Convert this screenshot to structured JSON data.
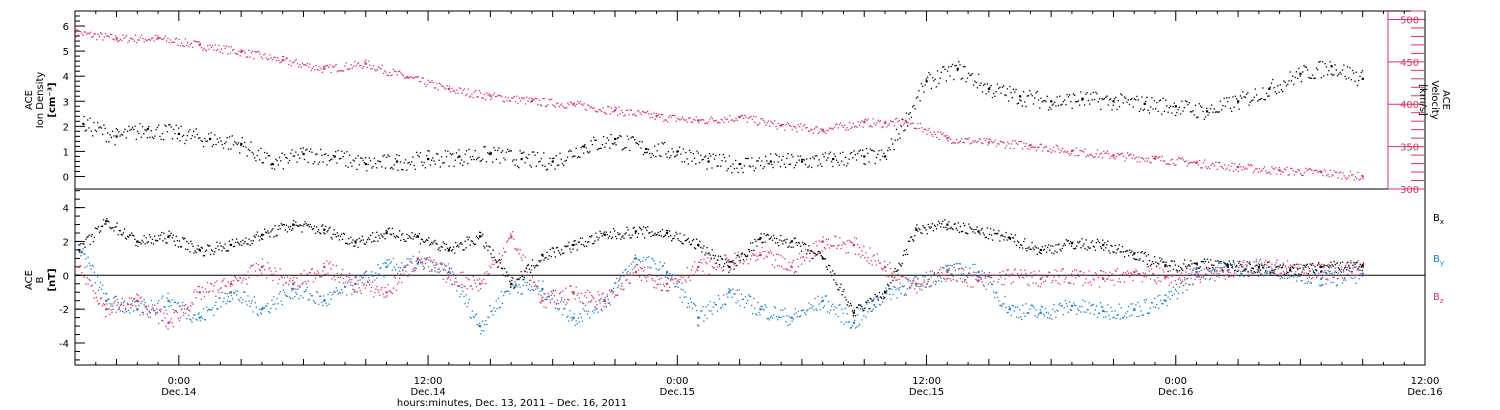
{
  "colors": {
    "density": "#000000",
    "velocity": "#e0355f",
    "bx": "#000000",
    "by": "#1a7fd6",
    "bz": "#e0355f"
  },
  "chart_data": [
    {
      "type": "scatter",
      "panel": "top",
      "ylabel_lines": [
        "ACE",
        "Ion Density",
        "[cm⁻³]"
      ],
      "y2label_lines": [
        "ACE",
        "Velocity",
        "[km/s]"
      ],
      "ylim": [
        -0.5,
        6.6
      ],
      "y2lim": [
        300,
        510
      ],
      "yticks": [
        "0",
        "1",
        "2",
        "3",
        "4",
        "5",
        "6"
      ],
      "y2ticks": [
        "300",
        "350",
        "400",
        "450",
        "500"
      ],
      "x_hours_range": [
        -5,
        60
      ],
      "series": [
        {
          "name": "Ion Density",
          "axis": "left",
          "color": "#000000",
          "x_hours": [
            -4.6,
            -3,
            -1.5,
            0,
            1.5,
            3,
            4.5,
            6,
            7.5,
            9,
            10.5,
            12,
            13.5,
            15,
            16.5,
            18,
            19.5,
            21,
            22.5,
            24,
            25.5,
            27,
            28.5,
            30,
            31.5,
            33,
            34,
            36,
            37.5,
            39,
            40.5,
            42,
            43.5,
            45,
            46.5,
            48,
            49.5,
            51,
            52.5,
            54,
            55.5,
            57
          ],
          "values": [
            2.1,
            1.6,
            1.9,
            1.7,
            1.5,
            1.3,
            0.5,
            0.9,
            0.8,
            0.5,
            0.6,
            0.7,
            0.8,
            0.9,
            0.7,
            0.6,
            1.2,
            1.5,
            1.1,
            1.0,
            0.6,
            0.5,
            0.6,
            0.6,
            0.7,
            0.8,
            0.8,
            3.8,
            4.3,
            3.5,
            3.2,
            3.0,
            3.1,
            3.0,
            2.9,
            2.8,
            2.6,
            3.0,
            3.5,
            4.1,
            4.4,
            3.9
          ]
        },
        {
          "name": "Velocity",
          "axis": "right",
          "color": "#e0355f",
          "x_hours": [
            -5,
            -3,
            -1,
            1,
            3,
            5,
            7,
            9,
            11,
            13,
            15,
            17,
            19,
            21,
            23,
            25,
            27,
            29,
            31,
            33,
            34,
            35,
            37,
            39,
            41,
            43,
            45,
            47,
            49,
            51,
            53,
            55,
            57
          ],
          "values": [
            485,
            478,
            478,
            470,
            462,
            452,
            442,
            448,
            432,
            418,
            410,
            404,
            400,
            393,
            386,
            381,
            385,
            375,
            370,
            379,
            378,
            380,
            360,
            355,
            352,
            345,
            340,
            336,
            331,
            326,
            322,
            320,
            315
          ]
        }
      ]
    },
    {
      "type": "scatter",
      "panel": "bottom",
      "ylabel_lines": [
        "ACE",
        "B",
        "[nT]"
      ],
      "ylim": [
        -5.3,
        5.1
      ],
      "yticks": [
        "-4",
        "-2",
        "0",
        "2",
        "4"
      ],
      "x_hours_range": [
        -5,
        60
      ],
      "xtick_labels": [
        {
          "time": "0:00",
          "date": "Dec.14"
        },
        {
          "time": "12:00",
          "date": "Dec.14"
        },
        {
          "time": "0:00",
          "date": "Dec.15"
        },
        {
          "time": "12:00",
          "date": "Dec.15"
        },
        {
          "time": "0:00",
          "date": "Dec.16"
        },
        {
          "time": "12:00",
          "date": "Dec.16"
        }
      ],
      "xlabel": "hours:minutes, Dec. 13, 2011 – Dec. 16, 2011",
      "legend": [
        {
          "label": "B",
          "sub": "x",
          "color": "#000000"
        },
        {
          "label": "B",
          "sub": "y",
          "color": "#1a7fd6"
        },
        {
          "label": "B",
          "sub": "z",
          "color": "#e0355f"
        }
      ],
      "series": [
        {
          "name": "Bx",
          "color": "#000000",
          "x_hours": [
            -4.8,
            -3.5,
            -2,
            -0.5,
            1,
            2.5,
            4,
            5.5,
            7,
            8.5,
            10,
            11.5,
            13,
            14.5,
            16,
            17.5,
            19,
            20.5,
            22,
            23.5,
            25,
            26.5,
            28,
            29.5,
            31,
            32.5,
            34,
            35.5,
            37,
            38.5,
            40,
            41.5,
            43,
            44.5,
            46,
            47.5,
            49,
            50.5,
            52,
            53.5,
            55,
            57
          ],
          "values": [
            1.5,
            3.2,
            2.0,
            2.3,
            1.5,
            1.8,
            2.4,
            3.0,
            2.7,
            2.0,
            2.5,
            2.3,
            1.5,
            2.3,
            -0.5,
            1.2,
            1.8,
            2.4,
            2.6,
            2.5,
            1.8,
            0.5,
            2.2,
            2.0,
            1.0,
            -2.2,
            -1.0,
            2.7,
            3.0,
            2.6,
            2.2,
            1.5,
            1.9,
            1.8,
            1.3,
            0.6,
            0.7,
            0.6,
            0.5,
            0.3,
            0.5,
            0.6
          ]
        },
        {
          "name": "By",
          "color": "#1a7fd6",
          "x_hours": [
            -4.8,
            -3.5,
            -2,
            -0.5,
            1,
            2.5,
            4,
            5.5,
            7,
            8.5,
            10,
            11.5,
            13,
            14.5,
            16,
            17.5,
            19,
            20.5,
            22,
            23.5,
            25,
            26.5,
            28,
            29.5,
            31,
            32.5,
            34,
            35.5,
            37,
            38.5,
            40,
            41.5,
            43,
            44.5,
            46,
            47.5,
            49,
            50.5,
            52,
            53.5,
            55,
            57
          ],
          "values": [
            1.8,
            -1.5,
            -2.0,
            -1.5,
            -2.5,
            -1.0,
            -2.0,
            -0.8,
            -1.5,
            -0.5,
            0.5,
            0.7,
            0.2,
            -3.0,
            -0.5,
            -0.8,
            -2.5,
            -1.5,
            1.0,
            0.2,
            -2.5,
            -1.0,
            -2.0,
            -2.5,
            -1.5,
            -2.8,
            -1.0,
            -0.5,
            0.3,
            0.2,
            -2.0,
            -2.2,
            -1.8,
            -2.1,
            -2.0,
            -1.5,
            0.2,
            0.5,
            0.4,
            0.3,
            -0.2,
            0.1
          ]
        },
        {
          "name": "Bz",
          "color": "#e0355f",
          "x_hours": [
            -4.8,
            -3.5,
            -2,
            -0.5,
            1,
            2.5,
            4,
            5.5,
            7,
            8.5,
            10,
            11.5,
            13,
            14.5,
            16,
            17.5,
            19,
            20.5,
            22,
            23.5,
            25,
            26.5,
            28,
            29.5,
            31,
            32.5,
            34,
            35.5,
            37,
            38.5,
            40,
            41.5,
            43,
            44.5,
            46,
            47.5,
            49,
            50.5,
            52,
            53.5,
            55,
            57
          ],
          "values": [
            0.5,
            -2.0,
            -1.5,
            -2.8,
            -1.0,
            -0.5,
            0.5,
            -0.5,
            0.5,
            -0.5,
            -1.0,
            1.0,
            0.0,
            -0.5,
            2.3,
            -1.5,
            -1.0,
            -1.5,
            0.2,
            -0.5,
            0.5,
            0.8,
            1.2,
            0.5,
            2.0,
            1.8,
            0.5,
            -0.5,
            0.2,
            -0.3,
            0.0,
            -0.2,
            0.0,
            -0.2,
            0.2,
            -0.1,
            0.0,
            0.3,
            0.5,
            0.4,
            0.2,
            0.5
          ]
        }
      ]
    }
  ]
}
